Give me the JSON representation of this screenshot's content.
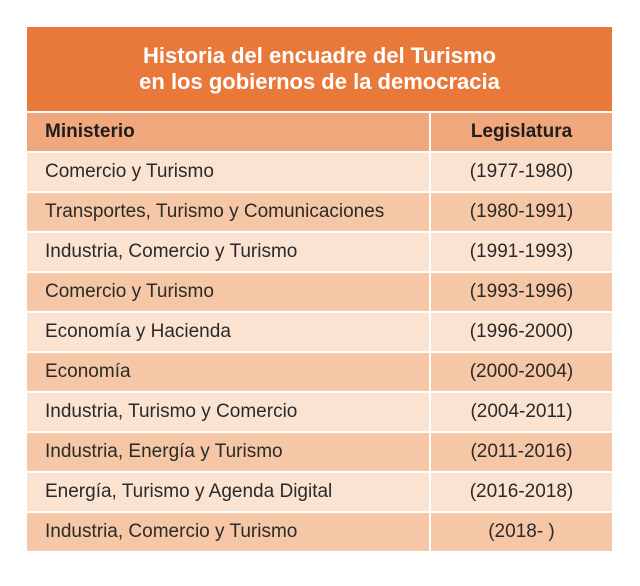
{
  "title": {
    "line1": "Historia del encuadre del Turismo",
    "line2": "en los gobiernos de la democracia"
  },
  "headers": {
    "ministerio": "Ministerio",
    "legislatura": "Legislatura"
  },
  "rows": [
    {
      "ministerio": "Comercio y Turismo",
      "legislatura": "(1977-1980)"
    },
    {
      "ministerio": "Transportes, Turismo y Comunicaciones",
      "legislatura": "(1980-1991)"
    },
    {
      "ministerio": "Industria, Comercio y Turismo",
      "legislatura": "(1991-1993)"
    },
    {
      "ministerio": "Comercio y Turismo",
      "legislatura": "(1993-1996)"
    },
    {
      "ministerio": "Economía y Hacienda",
      "legislatura": "(1996-2000)"
    },
    {
      "ministerio": "Economía",
      "legislatura": "(2000-2004)"
    },
    {
      "ministerio": "Industria, Turismo y Comercio",
      "legislatura": "(2004-2011)"
    },
    {
      "ministerio": "Industria, Energía y Turismo",
      "legislatura": "(2011-2016)"
    },
    {
      "ministerio": "Energía, Turismo y Agenda Digital",
      "legislatura": "(2016-2018)"
    },
    {
      "ministerio": "Industria, Comercio y Turismo",
      "legislatura": "(2018- )"
    }
  ],
  "colors": {
    "title_bg": "#e8793a",
    "header_bg": "#f0a77c",
    "row_light": "#fbe3d2",
    "row_dark": "#f6c7a6"
  }
}
